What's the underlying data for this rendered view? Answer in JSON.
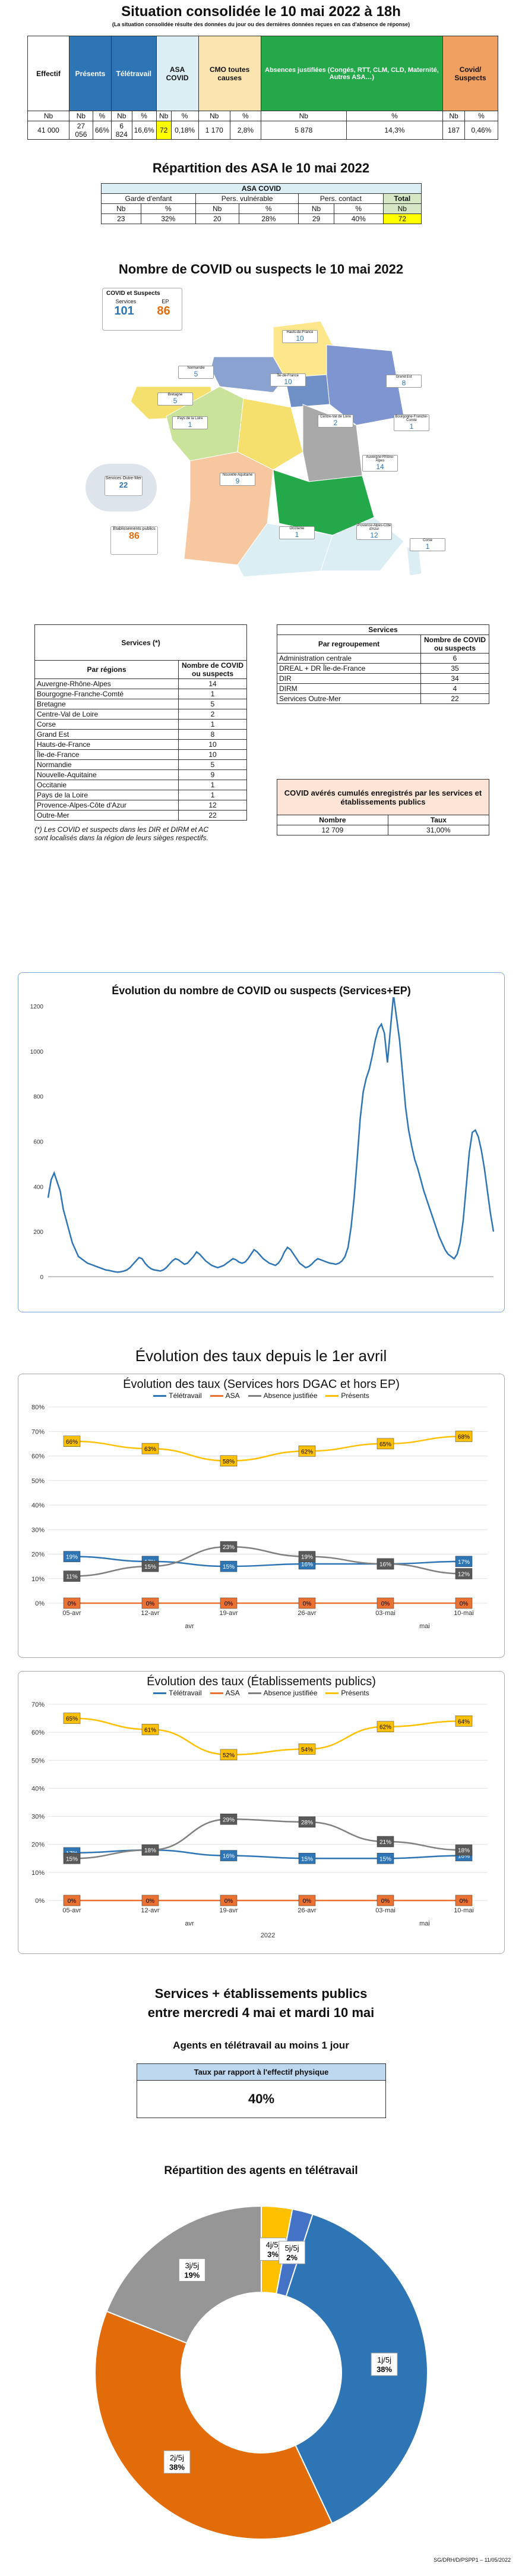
{
  "header": {
    "title": "Situation consolidée le 10 mai 2022 à 18h",
    "subtitle": "(La situation consolidée résulte des données du jour ou des dernières données reçues en cas d'absence de réponse)"
  },
  "summary_table": {
    "headers": [
      "Effectif",
      "Présents",
      "Télétravail",
      "ASA COVID",
      "CMO toutes causes",
      "Absences justifiées (Congés, RTT, CLM, CLD, Maternité, Autres ASA…)",
      "Covid/ Suspects"
    ],
    "sub": [
      "Nb",
      "Nb",
      "%",
      "Nb",
      "%",
      "Nb",
      "%",
      "Nb",
      "%",
      "Nb",
      "%",
      "Nb",
      "%"
    ],
    "values": [
      "41 000",
      "27 056",
      "66%",
      "6 824",
      "16,6%",
      "72",
      "0,18%",
      "1 170",
      "2,8%",
      "5 878",
      "14,3%",
      "187",
      "0,46%"
    ]
  },
  "asa": {
    "title": "Répartition des ASA le 10 mai 2022",
    "table_title": "ASA COVID",
    "groups": [
      "Garde d'enfant",
      "Pers. vulnérable",
      "Pers. contact",
      "Total"
    ],
    "sub": [
      "Nb",
      "%",
      "Nb",
      "%",
      "Nb",
      "%",
      "Nb"
    ],
    "values": [
      "23",
      "32%",
      "20",
      "28%",
      "29",
      "40%",
      "72"
    ]
  },
  "map": {
    "title": "Nombre de COVID ou suspects le 10 mai 2022",
    "legend_title": "COVID et Suspects",
    "legend_services": "Services",
    "legend_ep": "EP",
    "services_value": "101",
    "ep_value": "86",
    "outremer_label": "Services Outre-Mer",
    "outremer_value": "22",
    "ep_box_label": "Etablissements publics",
    "ep_box_value": "86",
    "regions": [
      {
        "name": "Hauts-de-France",
        "value": "10"
      },
      {
        "name": "Normandie",
        "value": "5"
      },
      {
        "name": "Île-de-France",
        "value": "10"
      },
      {
        "name": "Grand Est",
        "value": "8"
      },
      {
        "name": "Bretagne",
        "value": "5"
      },
      {
        "name": "Pays de la Loire",
        "value": "1"
      },
      {
        "name": "Centre-Val de Loire",
        "value": "2"
      },
      {
        "name": "Bourgogne-Franche-Comté",
        "value": "1"
      },
      {
        "name": "Nouvelle-Aquitaine",
        "value": "9"
      },
      {
        "name": "Auvergne-Rhône-Alpes",
        "value": "14"
      },
      {
        "name": "Occitanie",
        "value": "1"
      },
      {
        "name": "Provence-Alpes-Côte d'Azur",
        "value": "12"
      },
      {
        "name": "Corse",
        "value": "1"
      }
    ]
  },
  "services_regions": {
    "title": "Services (*)",
    "col1": "Par régions",
    "col2": "Nombre de COVID ou suspects",
    "rows": [
      [
        "Auvergne-Rhône-Alpes",
        "14"
      ],
      [
        "Bourgogne-Franche-Comté",
        "1"
      ],
      [
        "Bretagne",
        "5"
      ],
      [
        "Centre-Val de Loire",
        "2"
      ],
      [
        "Corse",
        "1"
      ],
      [
        "Grand Est",
        "8"
      ],
      [
        "Hauts-de-France",
        "10"
      ],
      [
        "Île-de-France",
        "10"
      ],
      [
        "Normandie",
        "5"
      ],
      [
        "Nouvelle-Aquitaine",
        "9"
      ],
      [
        "Occitanie",
        "1"
      ],
      [
        "Pays de la Loire",
        "1"
      ],
      [
        "Provence-Alpes-Côte d'Azur",
        "12"
      ],
      [
        "Outre-Mer",
        "22"
      ]
    ],
    "note": "(*) Les COVID et suspects dans les DIR et DIRM et AC sont localisés dans la région de leurs sièges respectifs."
  },
  "services_groups": {
    "title": "Services",
    "col1": "Par regroupement",
    "col2": "Nombre de COVID ou suspects",
    "rows": [
      [
        "Administration centrale",
        "6"
      ],
      [
        "DREAL + DR Île-de-France",
        "35"
      ],
      [
        "DIR",
        "34"
      ],
      [
        "DIRM",
        "4"
      ],
      [
        "Services Outre-Mer",
        "22"
      ]
    ]
  },
  "cumul": {
    "title": "COVID avérés cumulés enregistrés par les services et établissements publics",
    "col1": "Nombre",
    "col2": "Taux",
    "v1": "12 709",
    "v2": "31,00%"
  },
  "evolution_title": "Évolution des taux depuis le 1er avril",
  "chart_data": [
    {
      "type": "line",
      "title": "Évolution du nombre de COVID ou suspects (Services+EP)",
      "ylim": [
        0,
        1200
      ],
      "yticks": [
        0,
        200,
        400,
        600,
        800,
        1000,
        1200
      ],
      "series": [
        {
          "values": [
            350,
            430,
            460,
            420,
            380,
            300,
            250,
            200,
            150,
            120,
            90,
            80,
            70,
            60,
            55,
            50,
            45,
            40,
            35,
            30,
            28,
            25,
            22,
            20,
            22,
            25,
            30,
            40,
            55,
            70,
            85,
            80,
            60,
            45,
            35,
            30,
            28,
            25,
            30,
            40,
            55,
            70,
            80,
            75,
            65,
            55,
            60,
            75,
            90,
            110,
            100,
            85,
            70,
            60,
            50,
            45,
            40,
            45,
            50,
            60,
            70,
            80,
            75,
            65,
            60,
            65,
            80,
            100,
            120,
            110,
            95,
            80,
            70,
            60,
            55,
            50,
            60,
            80,
            110,
            130,
            120,
            100,
            80,
            60,
            50,
            40,
            45,
            55,
            70,
            80,
            75,
            70,
            65,
            60,
            58,
            55,
            60,
            70,
            90,
            130,
            220,
            350,
            520,
            700,
            820,
            880,
            920,
            980,
            1050,
            1100,
            1120,
            1080,
            950,
            1100,
            1250,
            1150,
            1050,
            900,
            750,
            650,
            580,
            520,
            480,
            430,
            380,
            340,
            300,
            260,
            220,
            180,
            150,
            120,
            100,
            90,
            80,
            100,
            150,
            250,
            400,
            550,
            640,
            650,
            620,
            560,
            480,
            380,
            280,
            200
          ]
        }
      ]
    },
    {
      "type": "line",
      "title": "Évolution des taux (Services hors DGAC et hors EP)",
      "categories": [
        "05-avr",
        "12-avr",
        "19-avr",
        "26-avr",
        "03-mai",
        "10-mai"
      ],
      "group_labels": [
        "avr",
        "mai"
      ],
      "ylim": [
        0,
        80
      ],
      "yticks": [
        "0%",
        "10%",
        "20%",
        "30%",
        "40%",
        "50%",
        "60%",
        "70%",
        "80%"
      ],
      "series": [
        {
          "name": "Télétravail",
          "color": "#2e75b6",
          "values": [
            19,
            17,
            15,
            16,
            16,
            17
          ]
        },
        {
          "name": "ASA",
          "color": "#e97132",
          "values": [
            0,
            0,
            0,
            0,
            0,
            0
          ]
        },
        {
          "name": "Absence justifiée",
          "color": "#808080",
          "values": [
            11,
            15,
            23,
            19,
            16,
            12
          ]
        },
        {
          "name": "Présents",
          "color": "#ffc000",
          "values": [
            66,
            63,
            58,
            62,
            65,
            68
          ]
        }
      ]
    },
    {
      "type": "line",
      "title": "Évolution des taux (Établissements publics)",
      "categories": [
        "05-avr",
        "12-avr",
        "19-avr",
        "26-avr",
        "03-mai",
        "10-mai"
      ],
      "group_labels": [
        "avr",
        "mai"
      ],
      "year_label": "2022",
      "ylim": [
        0,
        70
      ],
      "yticks": [
        "0%",
        "10%",
        "20%",
        "30%",
        "40%",
        "50%",
        "60%",
        "70%"
      ],
      "series": [
        {
          "name": "Télétravail",
          "color": "#2e75b6",
          "values": [
            17,
            18,
            16,
            15,
            15,
            16
          ]
        },
        {
          "name": "ASA",
          "color": "#e97132",
          "values": [
            0,
            0,
            0,
            0,
            0,
            0
          ]
        },
        {
          "name": "Absence justifiée",
          "color": "#808080",
          "values": [
            15,
            18,
            29,
            28,
            21,
            18
          ]
        },
        {
          "name": "Présents",
          "color": "#ffc000",
          "values": [
            65,
            61,
            52,
            54,
            62,
            64
          ]
        }
      ]
    },
    {
      "type": "pie",
      "title": "Répartition des agents en télétravail",
      "slices": [
        {
          "label": "1j/5j",
          "value": 38,
          "color": "#2e75b6"
        },
        {
          "label": "2j/5j",
          "value": 38,
          "color": "#e36c0a"
        },
        {
          "label": "3j/5j",
          "value": 19,
          "color": "#969696"
        },
        {
          "label": "4j/5j",
          "value": 3,
          "color": "#ffc000"
        },
        {
          "label": "5j/5j",
          "value": 2,
          "color": "#4472c4"
        }
      ]
    }
  ],
  "telework": {
    "title_line1": "Services + établissements publics",
    "title_line2": "entre mercredi 4 mai et mardi 10 mai",
    "subtitle": "Agents en télétravail au moins 1 jour",
    "box_header": "Taux par rapport à l'effectif physique",
    "box_value": "40%"
  },
  "footer": "SG/DRH/D/PSPP1 – 11/05/2022"
}
